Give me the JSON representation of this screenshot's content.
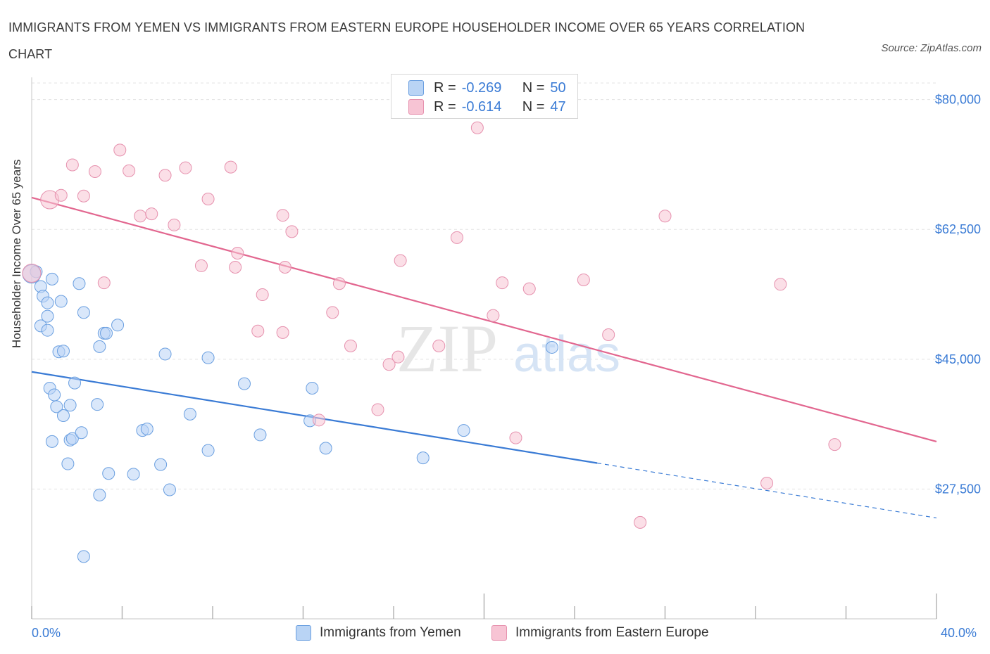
{
  "title": "IMMIGRANTS FROM YEMEN VS IMMIGRANTS FROM EASTERN EUROPE HOUSEHOLDER INCOME OVER 65 YEARS CORRELATION CHART",
  "source": "Source: ZipAtlas.com",
  "colors": {
    "blue_fill": "#b9d4f5",
    "blue_stroke": "#6a9fe0",
    "blue_line": "#3a7bd5",
    "pink_fill": "#f7c4d4",
    "pink_stroke": "#e691ae",
    "pink_line": "#e2668f",
    "tick_text": "#3a7bd5"
  },
  "legend_top": {
    "rows": [
      {
        "r_label": "R =",
        "r_value": "-0.269",
        "n_label": "N =",
        "n_value": "50"
      },
      {
        "r_label": "R =",
        "r_value": "-0.614",
        "n_label": "N =",
        "n_value": "47"
      }
    ]
  },
  "chart_data": {
    "type": "scatter",
    "title": "IMMIGRANTS FROM YEMEN VS IMMIGRANTS FROM EASTERN EUROPE HOUSEHOLDER INCOME OVER 65 YEARS CORRELATION CHART",
    "xlabel": "",
    "ylabel": "Householder Income Over 65 years",
    "xlim": [
      0,
      40
    ],
    "ylim": [
      10000,
      83000
    ],
    "x_tick_labels": [
      "0.0%",
      "40.0%"
    ],
    "y_ticks": [
      27500,
      45000,
      62500,
      80000
    ],
    "y_tick_labels": [
      "$27,500",
      "$45,000",
      "$62,500",
      "$80,000"
    ],
    "grid": true,
    "legend": "bottom",
    "watermark": "ZIPatlas",
    "series": [
      {
        "name": "Immigrants from Yemen",
        "color": "#6a9fe0",
        "trend": {
          "x0": 0,
          "y0": 43300,
          "x1": 25,
          "y1": 31000,
          "dashed_to_x": 40,
          "dashed_to_y": 23600
        },
        "points": [
          [
            0.2,
            56800
          ],
          [
            0.4,
            54800
          ],
          [
            0.5,
            53500
          ],
          [
            0.7,
            52600
          ],
          [
            0.9,
            55800
          ],
          [
            1.3,
            52800
          ],
          [
            2.1,
            55200
          ],
          [
            2.3,
            51300
          ],
          [
            0.4,
            49500
          ],
          [
            0.7,
            50800
          ],
          [
            0.7,
            48900
          ],
          [
            3.2,
            48500
          ],
          [
            3.3,
            48500
          ],
          [
            3.8,
            49600
          ],
          [
            1.2,
            46000
          ],
          [
            1.4,
            46100
          ],
          [
            5.9,
            45700
          ],
          [
            7.8,
            45200
          ],
          [
            0.8,
            41100
          ],
          [
            1.0,
            40200
          ],
          [
            1.1,
            38600
          ],
          [
            1.7,
            38800
          ],
          [
            1.4,
            37400
          ],
          [
            2.9,
            38900
          ],
          [
            1.9,
            41800
          ],
          [
            7.0,
            37600
          ],
          [
            9.4,
            41700
          ],
          [
            12.4,
            41100
          ],
          [
            1.7,
            34100
          ],
          [
            1.8,
            34300
          ],
          [
            2.2,
            35100
          ],
          [
            4.9,
            35400
          ],
          [
            5.1,
            35600
          ],
          [
            10.1,
            34800
          ],
          [
            12.3,
            36700
          ],
          [
            0.9,
            33900
          ],
          [
            7.8,
            32700
          ],
          [
            13.0,
            33000
          ],
          [
            17.3,
            31700
          ],
          [
            19.1,
            35400
          ],
          [
            1.6,
            30900
          ],
          [
            3.4,
            29600
          ],
          [
            4.5,
            29500
          ],
          [
            5.7,
            30800
          ],
          [
            3.0,
            26700
          ],
          [
            6.1,
            27400
          ],
          [
            2.3,
            18400
          ],
          [
            23.0,
            46600
          ],
          [
            3.0,
            46700
          ],
          [
            0.0,
            56500
          ]
        ]
      },
      {
        "name": "Immigrants from Eastern Europe",
        "color": "#e691ae",
        "trend": {
          "x0": 0,
          "y0": 66800,
          "x1": 40,
          "y1": 33900
        },
        "points": [
          [
            0.8,
            66500
          ],
          [
            1.3,
            67100
          ],
          [
            2.3,
            67000
          ],
          [
            3.9,
            73200
          ],
          [
            1.8,
            71200
          ],
          [
            2.8,
            70300
          ],
          [
            4.3,
            70400
          ],
          [
            5.9,
            69800
          ],
          [
            6.8,
            70800
          ],
          [
            8.8,
            70900
          ],
          [
            7.8,
            66600
          ],
          [
            4.8,
            64300
          ],
          [
            5.3,
            64600
          ],
          [
            6.3,
            63100
          ],
          [
            11.1,
            64400
          ],
          [
            11.5,
            62200
          ],
          [
            18.8,
            61400
          ],
          [
            28.0,
            64300
          ],
          [
            9.1,
            59300
          ],
          [
            9.0,
            57400
          ],
          [
            7.5,
            57600
          ],
          [
            11.2,
            57400
          ],
          [
            16.3,
            58300
          ],
          [
            3.2,
            55300
          ],
          [
            13.6,
            55200
          ],
          [
            20.8,
            55300
          ],
          [
            22.0,
            54500
          ],
          [
            24.4,
            55700
          ],
          [
            33.1,
            55100
          ],
          [
            10.2,
            53700
          ],
          [
            13.3,
            51300
          ],
          [
            20.4,
            50900
          ],
          [
            10.0,
            48800
          ],
          [
            11.1,
            48600
          ],
          [
            25.5,
            48300
          ],
          [
            14.1,
            46800
          ],
          [
            18.0,
            46800
          ],
          [
            15.8,
            44300
          ],
          [
            16.2,
            45300
          ],
          [
            15.3,
            38200
          ],
          [
            12.7,
            36800
          ],
          [
            21.4,
            34400
          ],
          [
            35.5,
            33500
          ],
          [
            32.5,
            28300
          ],
          [
            26.9,
            23000
          ],
          [
            0.0,
            56600
          ],
          [
            19.7,
            76200
          ]
        ]
      }
    ]
  },
  "bottom_legend": {
    "items": [
      "Immigrants from Yemen",
      "Immigrants from Eastern Europe"
    ]
  }
}
